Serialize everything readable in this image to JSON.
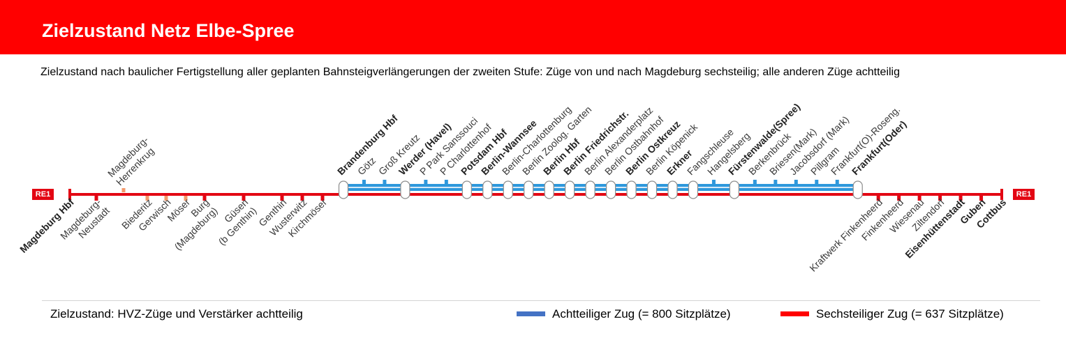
{
  "title": "Zielzustand Netz Elbe-Spree",
  "subtitle": "Zielzustand nach baulicher Fertigstellung aller geplanten Bahnsteigverlängerungen der zweiten Stufe: Züge von und nach Magdeburg sechsteilig; alle anderen Züge achtteilig",
  "line_badge": "RE1",
  "colors": {
    "header": "#ff0000",
    "six_car": "#e30613",
    "eight_car": "#2e98dc",
    "orange_tick": "#f39a6b",
    "stop_fill": "#ffffff",
    "stop_border": "#8c8c8c"
  },
  "eight_car_span": [
    11,
    36
  ],
  "stations": [
    {
      "name": "Magdeburg Hbf",
      "major": true,
      "marker": "terminal"
    },
    {
      "name": "Magdeburg-\nNeustadt",
      "major": false,
      "marker": "red-tick"
    },
    {
      "name": "Magdeburg-\nHerrenkrug",
      "major": false,
      "marker": "orange-tick"
    },
    {
      "name": "Biederitz",
      "major": false,
      "marker": "orange-tick"
    },
    {
      "name": "Gerwisch",
      "major": false,
      "marker": "orange-tick"
    },
    {
      "name": "Möser",
      "major": false,
      "marker": "orange-tick"
    },
    {
      "name": "Burg\n(Magdeburg)",
      "major": false,
      "marker": "red-tick"
    },
    {
      "name": "Güsen\n(b Genthin)",
      "major": false,
      "marker": "red-tick"
    },
    {
      "name": "Genthin",
      "major": false,
      "marker": "red-tick"
    },
    {
      "name": "Wusterwitz",
      "major": false,
      "marker": "red-tick"
    },
    {
      "name": "Kirchmöser",
      "major": false,
      "marker": "red-tick"
    },
    {
      "name": "Brandenburg Hbf",
      "major": true,
      "marker": "platform"
    },
    {
      "name": "Götz",
      "major": false,
      "marker": "blue-tick"
    },
    {
      "name": "Groß Kreutz",
      "major": false,
      "marker": "blue-tick"
    },
    {
      "name": "Werder (Havel)",
      "major": true,
      "marker": "platform"
    },
    {
      "name": "P Park Sanssouci",
      "major": false,
      "marker": "blue-tick"
    },
    {
      "name": "P Charlottenhof",
      "major": false,
      "marker": "blue-tick"
    },
    {
      "name": "Potsdam Hbf",
      "major": true,
      "marker": "platform"
    },
    {
      "name": "Berlin-Wannsee",
      "major": true,
      "marker": "platform"
    },
    {
      "name": "Berlin-Charlottenburg",
      "major": false,
      "marker": "platform"
    },
    {
      "name": "Berlin Zoolog. Garten",
      "major": false,
      "marker": "platform"
    },
    {
      "name": "Berlin Hbf",
      "major": true,
      "marker": "platform"
    },
    {
      "name": "Berlin Friedrichstr.",
      "major": true,
      "marker": "platform"
    },
    {
      "name": "Berlin Alexanderplatz",
      "major": false,
      "marker": "platform"
    },
    {
      "name": "Berlin Ostbahnhof",
      "major": false,
      "marker": "platform"
    },
    {
      "name": "Berlin Ostkreuz",
      "major": true,
      "marker": "platform"
    },
    {
      "name": "Berlin Köpenick",
      "major": false,
      "marker": "platform"
    },
    {
      "name": "Erkner",
      "major": true,
      "marker": "platform"
    },
    {
      "name": "Fangschleuse",
      "major": false,
      "marker": "platform"
    },
    {
      "name": "Hangelsberg",
      "major": false,
      "marker": "blue-tick"
    },
    {
      "name": "Fürstenwalde(Spree)",
      "major": true,
      "marker": "platform"
    },
    {
      "name": "Berkenbrück",
      "major": false,
      "marker": "blue-tick"
    },
    {
      "name": "Briesen(Mark)",
      "major": false,
      "marker": "blue-tick"
    },
    {
      "name": "Jacobsdorf (Mark)",
      "major": false,
      "marker": "blue-tick"
    },
    {
      "name": "Pillgram",
      "major": false,
      "marker": "blue-tick"
    },
    {
      "name": "Frankfurt(O)-Roseng.",
      "major": false,
      "marker": "blue-tick"
    },
    {
      "name": "Frankfurt(Oder)",
      "major": true,
      "marker": "platform"
    },
    {
      "name": "Kraftwerk Finkenheerd",
      "major": false,
      "marker": "red-tick"
    },
    {
      "name": "Finkenheerd",
      "major": false,
      "marker": "red-tick"
    },
    {
      "name": "Wiesenau",
      "major": false,
      "marker": "red-tick"
    },
    {
      "name": "Ziltendorf",
      "major": false,
      "marker": "red-tick"
    },
    {
      "name": "Eisenhüttenstadt",
      "major": true,
      "marker": "red-tick"
    },
    {
      "name": "Guben",
      "major": true,
      "marker": "red-tick"
    },
    {
      "name": "Cottbus",
      "major": true,
      "marker": "terminal"
    }
  ],
  "footer_note": "Zielzustand: HVZ-Züge und Verstärker achtteilig",
  "legend": [
    {
      "label": "Achtteiliger Zug (= 800 Sitzplätze)",
      "color": "#4472c4"
    },
    {
      "label": "Sechsteiliger Zug (= 637 Sitzplätze)",
      "color": "#ff0000"
    }
  ]
}
